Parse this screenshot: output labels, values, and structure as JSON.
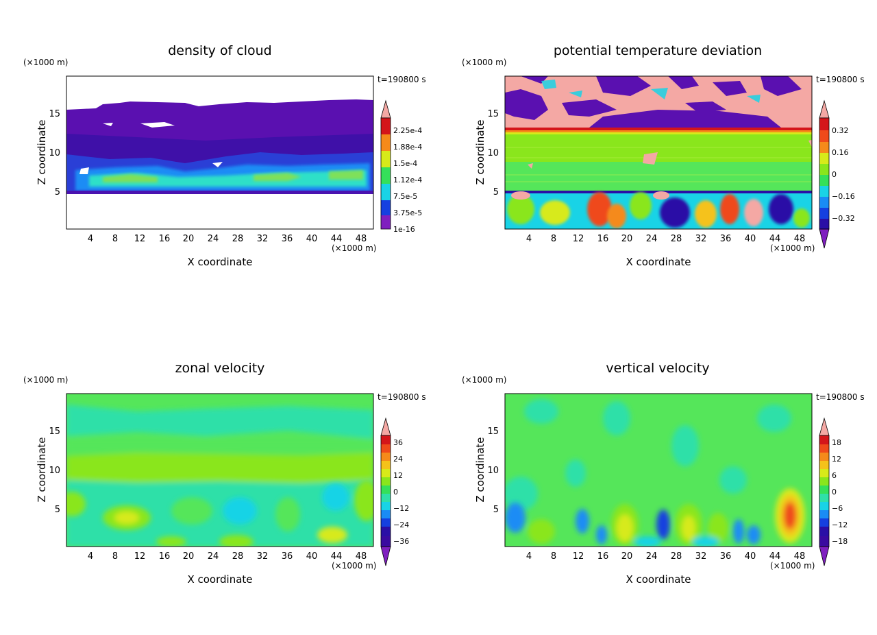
{
  "figure": {
    "panels": [
      {
        "id": "density-of-cloud",
        "title": "density of cloud",
        "time_label": "t=190800 s",
        "xlabel": "X coordinate",
        "ylabel": "Z coordinate",
        "x_unit": "(×1000 m)",
        "y_unit": "(×1000 m)",
        "xlim": [
          0,
          50
        ],
        "ylim": [
          0,
          19.5
        ],
        "x_ticks": [
          "4",
          "8",
          "12",
          "16",
          "20",
          "24",
          "28",
          "32",
          "36",
          "40",
          "44",
          "48"
        ],
        "y_ticks": [
          "5",
          "10",
          "15"
        ],
        "colorbar": {
          "labels": [
            "2.25e-4",
            "1.88e-4",
            "1.5e-4",
            "1.12e-4",
            "7.5e-5",
            "3.75e-5",
            "1e-16"
          ],
          "extend_top": true,
          "extend_bottom": false
        }
      },
      {
        "id": "potential-temperature-deviation",
        "title": "potential temperature deviation",
        "time_label": "t=190800 s",
        "xlabel": "X coordinate",
        "ylabel": "Z coordinate",
        "x_unit": "(×1000 m)",
        "y_unit": "(×1000 m)",
        "xlim": [
          0,
          50
        ],
        "ylim": [
          0,
          19.5
        ],
        "x_ticks": [
          "4",
          "8",
          "12",
          "16",
          "20",
          "24",
          "28",
          "32",
          "36",
          "40",
          "44",
          "48"
        ],
        "y_ticks": [
          "5",
          "10",
          "15"
        ],
        "colorbar": {
          "labels": [
            "0.32",
            "0.16",
            "0",
            "−0.16",
            "−0.32"
          ],
          "extend_top": true,
          "extend_bottom": true
        }
      },
      {
        "id": "zonal-velocity",
        "title": "zonal velocity",
        "time_label": "t=190800 s",
        "xlabel": "X coordinate",
        "ylabel": "Z coordinate",
        "x_unit": "(×1000 m)",
        "y_unit": "(×1000 m)",
        "xlim": [
          0,
          50
        ],
        "ylim": [
          0,
          19.5
        ],
        "x_ticks": [
          "4",
          "8",
          "12",
          "16",
          "20",
          "24",
          "28",
          "32",
          "36",
          "40",
          "44",
          "48"
        ],
        "y_ticks": [
          "5",
          "10",
          "15"
        ],
        "colorbar": {
          "labels": [
            "36",
            "24",
            "12",
            "0",
            "−12",
            "−24",
            "−36"
          ],
          "extend_top": true,
          "extend_bottom": true
        }
      },
      {
        "id": "vertical-velocity",
        "title": "vertical velocity",
        "time_label": "t=190800 s",
        "xlabel": "X coordinate",
        "ylabel": "Z coordinate",
        "x_unit": "(×1000 m)",
        "y_unit": "(×1000 m)",
        "xlim": [
          0,
          50
        ],
        "ylim": [
          0,
          19.5
        ],
        "x_ticks": [
          "4",
          "8",
          "12",
          "16",
          "20",
          "24",
          "28",
          "32",
          "36",
          "40",
          "44",
          "48"
        ],
        "y_ticks": [
          "5",
          "10",
          "15"
        ],
        "colorbar": {
          "labels": [
            "18",
            "12",
            "6",
            "0",
            "−6",
            "−12",
            "−18"
          ],
          "extend_top": true,
          "extend_bottom": true
        }
      }
    ]
  },
  "colors": {
    "palette": [
      "#7f1fbf",
      "#2a0fa6",
      "#1540e0",
      "#1a8cf5",
      "#19d3e6",
      "#2fe0a8",
      "#35e05a",
      "#8ae61c",
      "#d7ea1a",
      "#f5c21a",
      "#f58a1a",
      "#ef4a1a",
      "#d4151a",
      "#f4a8a4"
    ],
    "cloud_fill_dark": "#5a10b0",
    "neutral_green": "#55e65a",
    "light_green": "#8ae61c",
    "cyan": "#2fe0c8"
  },
  "chart_data": [
    {
      "type": "heatmap",
      "title": "density of cloud",
      "xlabel": "X coordinate",
      "ylabel": "Z coordinate",
      "xlim": [
        0,
        50
      ],
      "ylim": [
        0,
        19.5
      ],
      "x_ticks": [
        4,
        8,
        12,
        16,
        20,
        24,
        28,
        32,
        36,
        40,
        44,
        48
      ],
      "y_ticks": [
        5,
        10,
        15
      ],
      "colorbar_levels": [
        1e-16,
        3.75e-05,
        7.5e-05,
        0.000112,
        0.00015,
        0.000188,
        0.000225
      ],
      "annotation": "t=190800 s"
    },
    {
      "type": "heatmap",
      "title": "potential temperature deviation",
      "xlabel": "X coordinate",
      "ylabel": "Z coordinate",
      "xlim": [
        0,
        50
      ],
      "ylim": [
        0,
        19.5
      ],
      "x_ticks": [
        4,
        8,
        12,
        16,
        20,
        24,
        28,
        32,
        36,
        40,
        44,
        48
      ],
      "y_ticks": [
        5,
        10,
        15
      ],
      "colorbar_levels": [
        -0.32,
        -0.16,
        0,
        0.16,
        0.32
      ],
      "annotation": "t=190800 s"
    },
    {
      "type": "heatmap",
      "title": "zonal velocity",
      "xlabel": "X coordinate",
      "ylabel": "Z coordinate",
      "xlim": [
        0,
        50
      ],
      "ylim": [
        0,
        19.5
      ],
      "x_ticks": [
        4,
        8,
        12,
        16,
        20,
        24,
        28,
        32,
        36,
        40,
        44,
        48
      ],
      "y_ticks": [
        5,
        10,
        15
      ],
      "colorbar_levels": [
        -36,
        -24,
        -12,
        0,
        12,
        24,
        36
      ],
      "annotation": "t=190800 s"
    },
    {
      "type": "heatmap",
      "title": "vertical velocity",
      "xlabel": "X coordinate",
      "ylabel": "Z coordinate",
      "xlim": [
        0,
        50
      ],
      "ylim": [
        0,
        19.5
      ],
      "x_ticks": [
        4,
        8,
        12,
        16,
        20,
        24,
        28,
        32,
        36,
        40,
        44,
        48
      ],
      "y_ticks": [
        5,
        10,
        15
      ],
      "colorbar_levels": [
        -18,
        -12,
        -6,
        0,
        6,
        12,
        18
      ],
      "annotation": "t=190800 s"
    }
  ]
}
